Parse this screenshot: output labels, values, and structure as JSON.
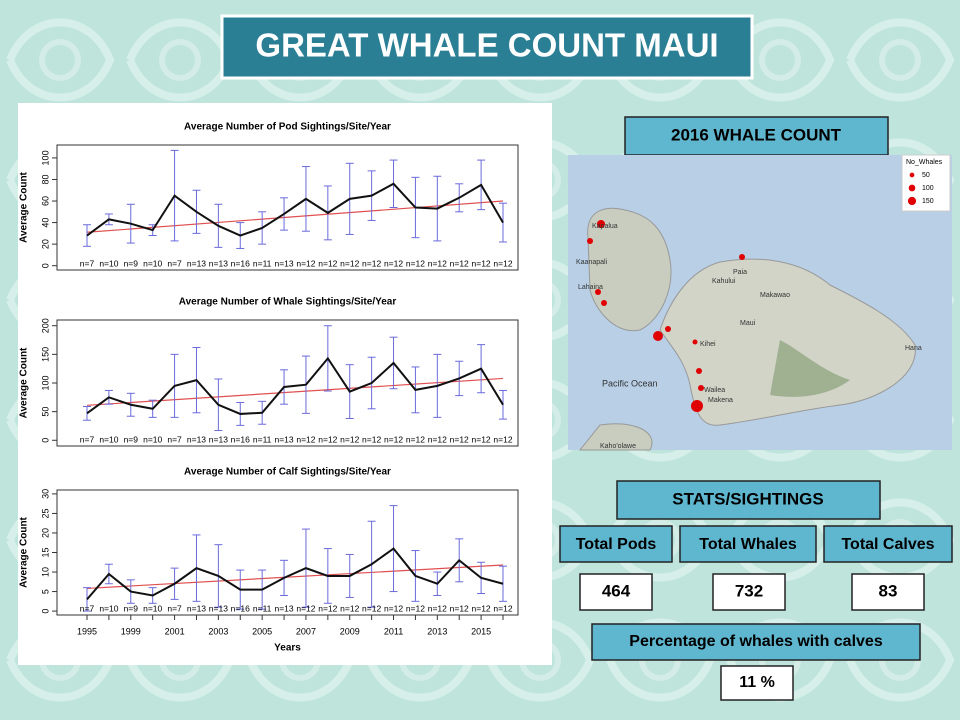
{
  "title": "GREAT WHALE COUNT MAUI",
  "chart_data": [
    {
      "type": "line",
      "title": "Average Number of Pod Sightings/Site/Year",
      "ylabel": "Average Count",
      "values": [
        28,
        43,
        39,
        33,
        65,
        50,
        37,
        28,
        35,
        48,
        62,
        49,
        62,
        65,
        76,
        54,
        53,
        63,
        75,
        40
      ],
      "errors": [
        10,
        5,
        18,
        5,
        42,
        20,
        20,
        12,
        15,
        15,
        30,
        25,
        33,
        23,
        22,
        28,
        30,
        13,
        23,
        18
      ],
      "n_labels": [
        "n=7",
        "n=10",
        "n=9",
        "n=10",
        "n=7",
        "n=13",
        "n=13",
        "n=16",
        "n=11",
        "n=13",
        "n=12",
        "n=12",
        "n=12",
        "n=12",
        "n=12",
        "n=12",
        "n=12",
        "n=12",
        "n=12",
        "n=12"
      ],
      "trend": [
        31,
        60
      ],
      "color": "#111111",
      "error_color": "#6a6adc",
      "trend_color": "#e05050",
      "ylim": [
        -4,
        112
      ],
      "yticks": [
        0,
        20,
        40,
        60,
        80,
        100
      ]
    },
    {
      "type": "line",
      "title": "Average Number of Whale Sightings/Site/Year",
      "ylabel": "Average Count",
      "values": [
        47,
        75,
        62,
        55,
        95,
        105,
        62,
        46,
        48,
        93,
        97,
        143,
        85,
        100,
        135,
        88,
        95,
        108,
        125,
        62
      ],
      "errors": [
        12,
        12,
        20,
        15,
        55,
        57,
        45,
        20,
        20,
        30,
        50,
        57,
        47,
        45,
        45,
        40,
        55,
        30,
        42,
        25
      ],
      "n_labels": [
        "n=7",
        "n=10",
        "n=9",
        "n=10",
        "n=7",
        "n=13",
        "n=13",
        "n=16",
        "n=11",
        "n=13",
        "n=12",
        "n=12",
        "n=12",
        "n=12",
        "n=12",
        "n=12",
        "n=12",
        "n=12",
        "n=12",
        "n=12"
      ],
      "trend": [
        61,
        108
      ],
      "color": "#111111",
      "error_color": "#6a6adc",
      "trend_color": "#e05050",
      "ylim": [
        -10,
        210
      ],
      "yticks": [
        0,
        50,
        100,
        150,
        200
      ]
    },
    {
      "type": "line",
      "title": "Average Number of Calf Sightings/Site/Year",
      "ylabel": "Average Count",
      "xlabel": "Years",
      "categories": [
        "1995",
        null,
        "1999",
        null,
        "2001",
        null,
        "2003",
        null,
        "2005",
        null,
        "2007",
        null,
        "2009",
        null,
        "2011",
        null,
        "2013",
        null,
        "2015",
        null
      ],
      "values": [
        3,
        9.5,
        5,
        4,
        7,
        11,
        9,
        5.5,
        5.5,
        8.5,
        11,
        9,
        9,
        12,
        16,
        9,
        7,
        13,
        8.5,
        7
      ],
      "errors": [
        3,
        2.5,
        3,
        2,
        4,
        8.5,
        8,
        5,
        5,
        4.5,
        10,
        7,
        5.5,
        11,
        11,
        6.5,
        3,
        5.5,
        4,
        4.5
      ],
      "n_labels": [
        "n=7",
        "n=10",
        "n=9",
        "n=10",
        "n=7",
        "n=13",
        "n=13",
        "n=16",
        "n=11",
        "n=13",
        "n=12",
        "n=12",
        "n=12",
        "n=12",
        "n=12",
        "n=12",
        "n=12",
        "n=12",
        "n=12",
        "n=12"
      ],
      "trend": [
        5.8,
        11.8
      ],
      "color": "#111111",
      "error_color": "#6a6adc",
      "trend_color": "#e05050",
      "ylim": [
        -1,
        31
      ],
      "yticks": [
        0,
        5,
        10,
        15,
        20,
        25,
        30
      ]
    }
  ],
  "map": {
    "title": "2016 WHALE COUNT",
    "legend": {
      "title": "No_Whales",
      "sizes": [
        50,
        100,
        150
      ]
    },
    "places": [
      "Kapalua",
      "Kaanapali",
      "Lahaina",
      "Kahului",
      "Paia",
      "Makawao",
      "Maui",
      "Kihei",
      "Wailea",
      "Makena",
      "Pacific Ocean",
      "Kaho'olawe",
      "Hana"
    ]
  },
  "stats": {
    "title": "STATS/SIGHTINGS",
    "items": [
      {
        "label": "Total Pods",
        "value": "464"
      },
      {
        "label": "Total Whales",
        "value": "732"
      },
      {
        "label": "Total Calves",
        "value": "83"
      }
    ],
    "percentage": {
      "label": "Percentage of whales with calves",
      "value": "11 %"
    }
  }
}
